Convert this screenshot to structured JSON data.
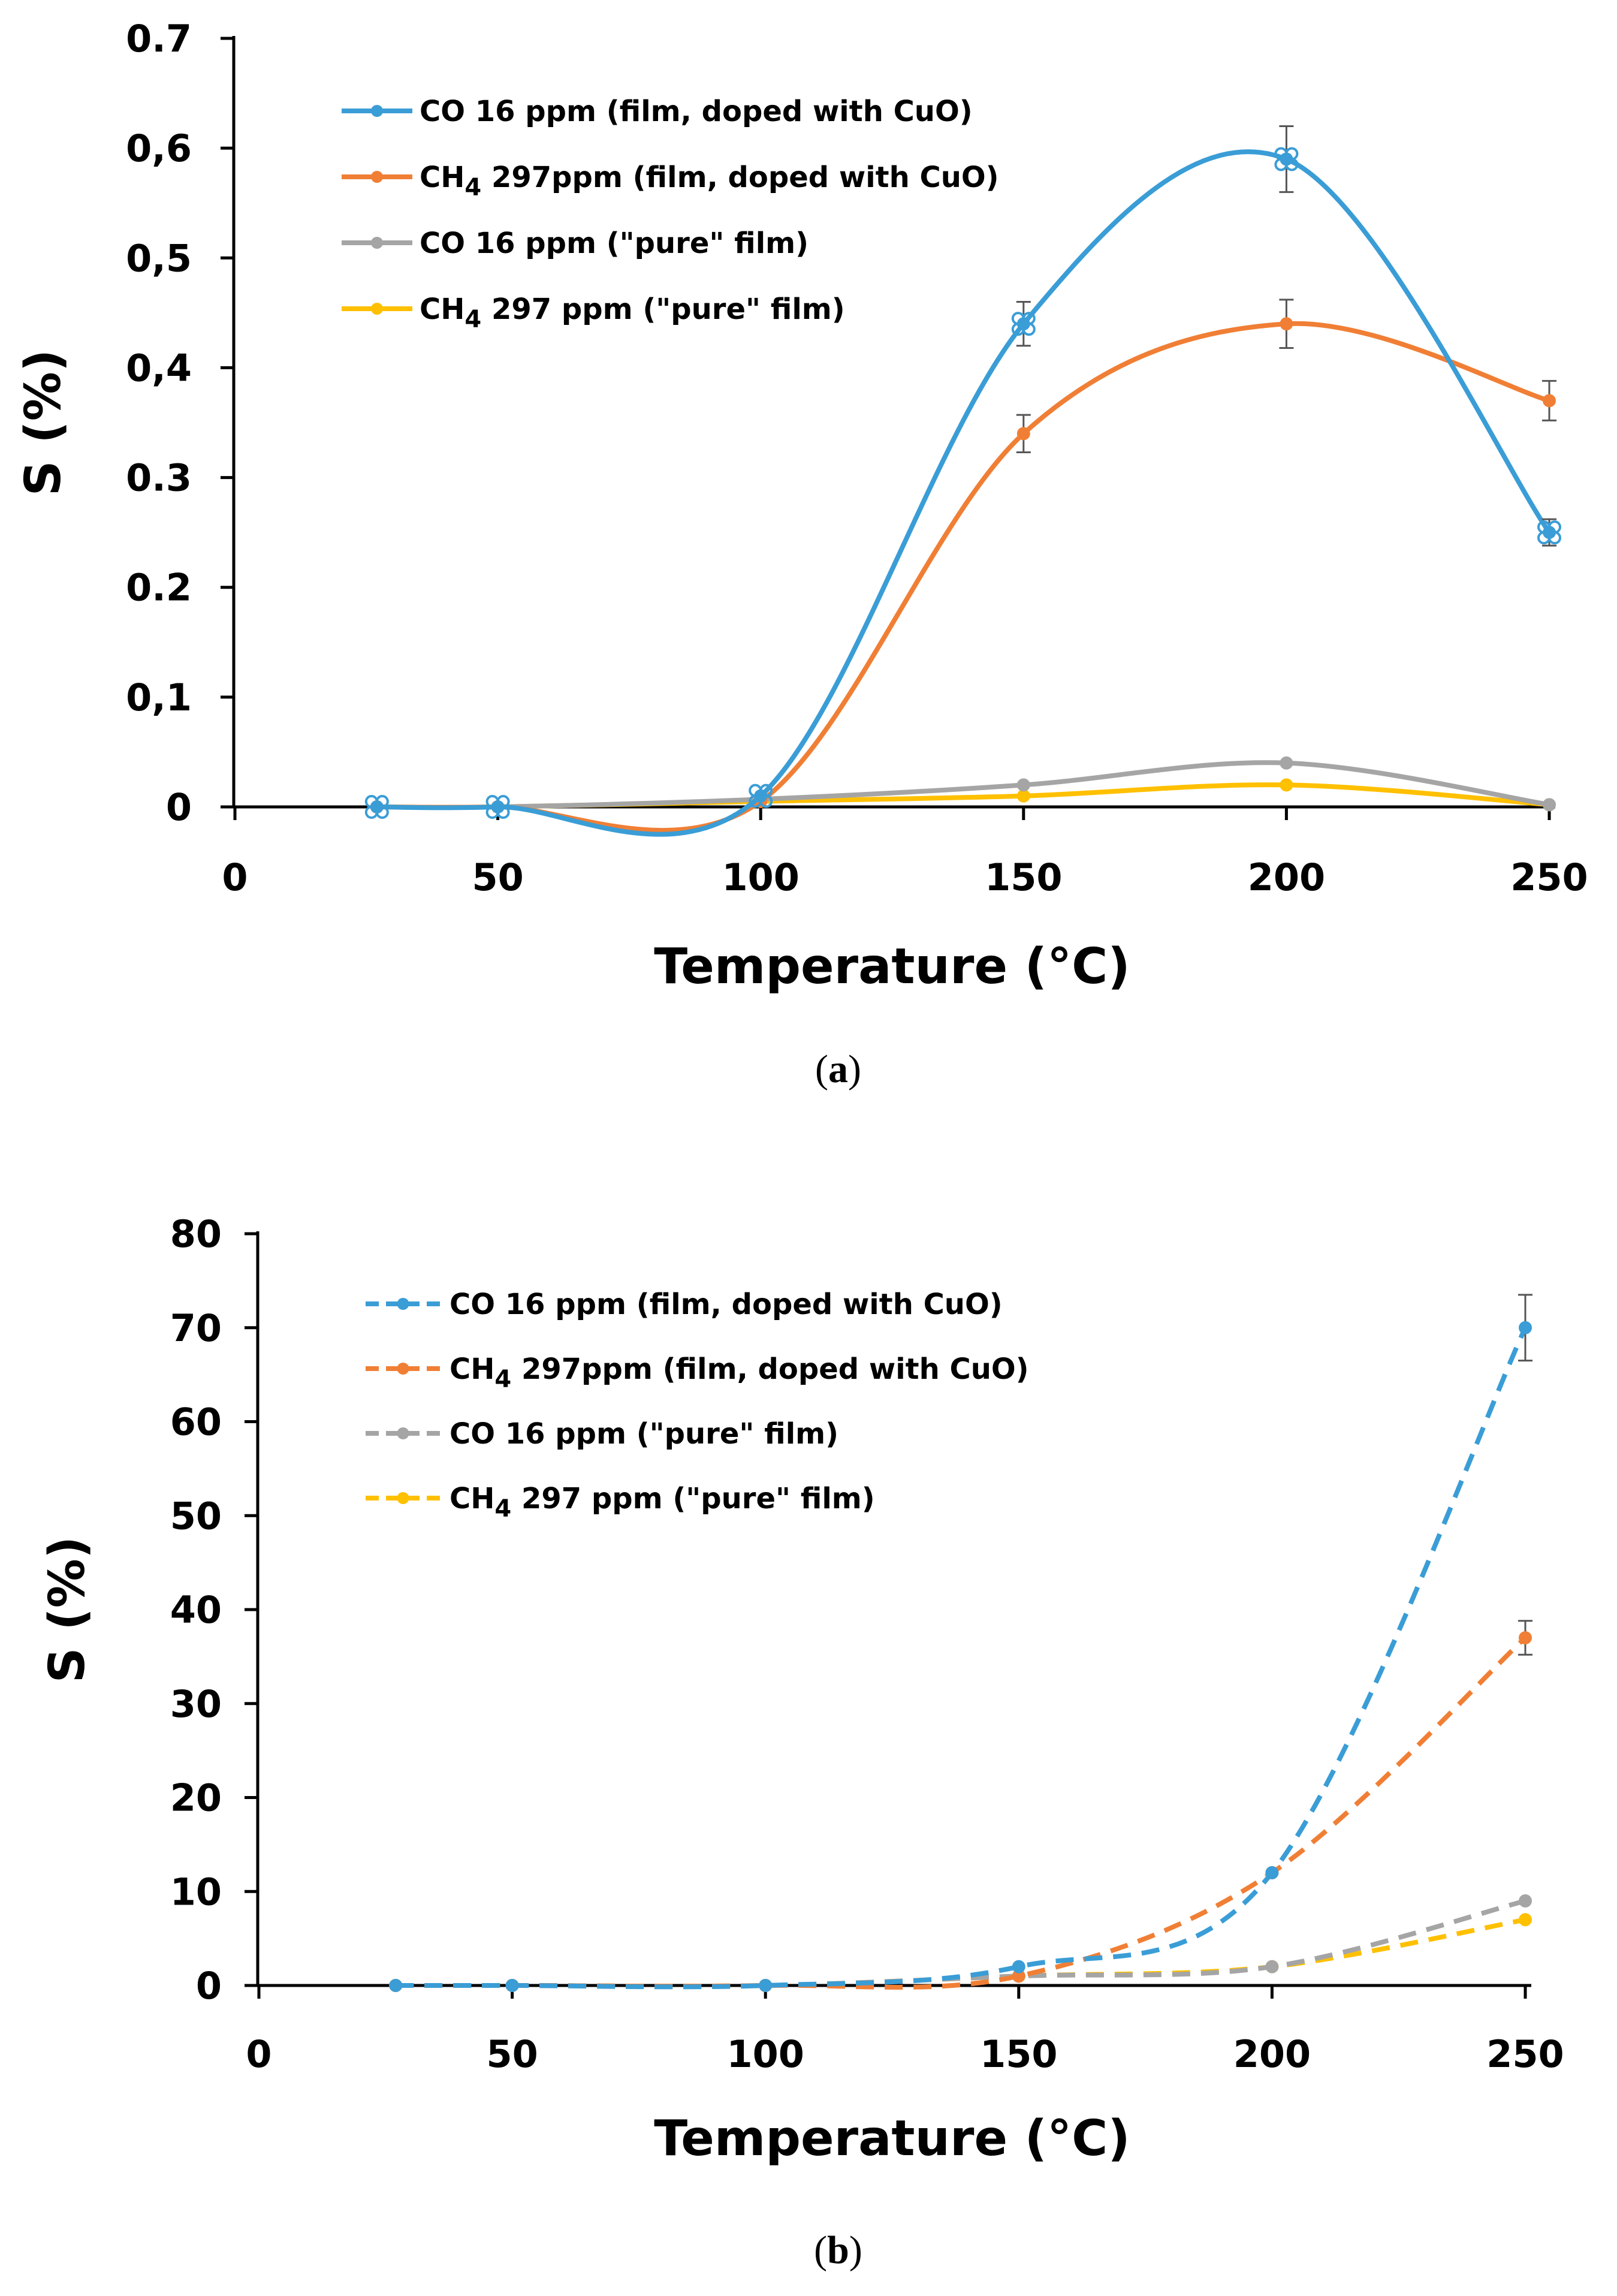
{
  "chart_data": [
    {
      "type": "line",
      "panel_label": "a",
      "xlabel": "Temperature  (°C)",
      "ylabel": "S (%)",
      "xlim": [
        0,
        250
      ],
      "ylim": [
        0,
        0.7
      ],
      "x_ticks": [
        "0",
        "50",
        "100",
        "150",
        "200",
        "250"
      ],
      "y_ticks": [
        "0",
        "0,1",
        "0.2",
        "0.3",
        "0,4",
        "0,5",
        "0,6",
        "0.7"
      ],
      "legend_position": "top-left",
      "series": [
        {
          "name": "CO 16 ppm (film, doped with CuO)",
          "legend_main": "CO 16 ppm (film, doped with CuO)",
          "legend_sub": "",
          "legend_rest": "",
          "color": "#3a9dd6",
          "dashed": false,
          "x": [
            27,
            50,
            100,
            150,
            200,
            250
          ],
          "values": [
            0,
            0,
            0.01,
            0.44,
            0.59,
            0.25
          ],
          "errors": [
            0,
            0,
            0,
            0.02,
            0.03,
            0.012
          ]
        },
        {
          "name": "CH4 297ppm (film, doped with CuO)",
          "legend_main": "CH",
          "legend_sub": "4",
          "legend_rest": " 297ppm (film, doped with CuO)",
          "color": "#f07f35",
          "dashed": false,
          "x": [
            27,
            50,
            100,
            150,
            200,
            250
          ],
          "values": [
            0,
            0,
            0.005,
            0.34,
            0.44,
            0.37
          ],
          "errors": [
            0,
            0,
            0,
            0.017,
            0.022,
            0.018
          ]
        },
        {
          "name": "CO 16 ppm (\"pure\" film)",
          "legend_main": "CO 16 ppm (\"pure\" film)",
          "legend_sub": "",
          "legend_rest": "",
          "color": "#a5a5a5",
          "dashed": false,
          "x": [
            27,
            50,
            100,
            150,
            200,
            250
          ],
          "values": [
            0,
            0,
            0.007,
            0.02,
            0.04,
            0.002
          ],
          "errors": [
            0,
            0,
            0,
            0,
            0,
            0
          ]
        },
        {
          "name": "CH4 297 ppm (\"pure\" film)",
          "legend_main": "CH",
          "legend_sub": "4",
          "legend_rest": " 297 ppm (\"pure\" film)",
          "color": "#ffc000",
          "dashed": false,
          "x": [
            27,
            50,
            100,
            150,
            200,
            250
          ],
          "values": [
            0,
            0,
            0.005,
            0.01,
            0.02,
            0.002
          ],
          "errors": [
            0,
            0,
            0,
            0,
            0,
            0
          ]
        }
      ]
    },
    {
      "type": "line",
      "panel_label": "b",
      "xlabel": "Temperature  (°C)",
      "ylabel": "S (%)",
      "xlim": [
        0,
        250
      ],
      "ylim": [
        0,
        80
      ],
      "x_ticks": [
        "0",
        "50",
        "100",
        "150",
        "200",
        "250"
      ],
      "y_ticks": [
        "0",
        "10",
        "20",
        "30",
        "40",
        "50",
        "60",
        "70",
        "80"
      ],
      "legend_position": "top-left",
      "series": [
        {
          "name": "CO 16 ppm (film, doped with CuO)",
          "legend_main": "CO 16 ppm (film, doped with CuO)",
          "legend_sub": "",
          "legend_rest": "",
          "color": "#3a9dd6",
          "dashed": true,
          "x": [
            27,
            50,
            100,
            150,
            200,
            250
          ],
          "values": [
            0,
            0,
            0,
            2,
            12,
            70
          ],
          "errors": [
            0,
            0,
            0,
            0,
            0,
            3.5
          ]
        },
        {
          "name": "CH4 297ppm (film, doped with CuO)",
          "legend_main": "CH",
          "legend_sub": "4",
          "legend_rest": " 297ppm (film, doped with CuO)",
          "color": "#f07f35",
          "dashed": true,
          "x": [
            27,
            50,
            100,
            150,
            200,
            250
          ],
          "values": [
            0,
            0,
            0,
            1,
            12,
            37
          ],
          "errors": [
            0,
            0,
            0,
            0,
            0,
            1.8
          ]
        },
        {
          "name": "CO 16 ppm (\"pure\" film)",
          "legend_main": "CO 16 ppm (\"pure\" film)",
          "legend_sub": "",
          "legend_rest": "",
          "color": "#a5a5a5",
          "dashed": true,
          "x": [
            27,
            50,
            100,
            150,
            200,
            250
          ],
          "values": [
            0,
            0,
            0,
            1,
            2,
            9
          ],
          "errors": [
            0,
            0,
            0,
            0,
            0,
            0
          ]
        },
        {
          "name": "CH4 297 ppm (\"pure\" film)",
          "legend_main": "CH",
          "legend_sub": "4",
          "legend_rest": " 297 ppm (\"pure\" film)",
          "color": "#ffc000",
          "dashed": true,
          "x": [
            27,
            50,
            100,
            150,
            200,
            250
          ],
          "values": [
            0,
            0,
            0,
            1,
            2,
            7
          ],
          "errors": [
            0,
            0,
            0,
            0,
            0,
            0
          ]
        }
      ]
    }
  ]
}
